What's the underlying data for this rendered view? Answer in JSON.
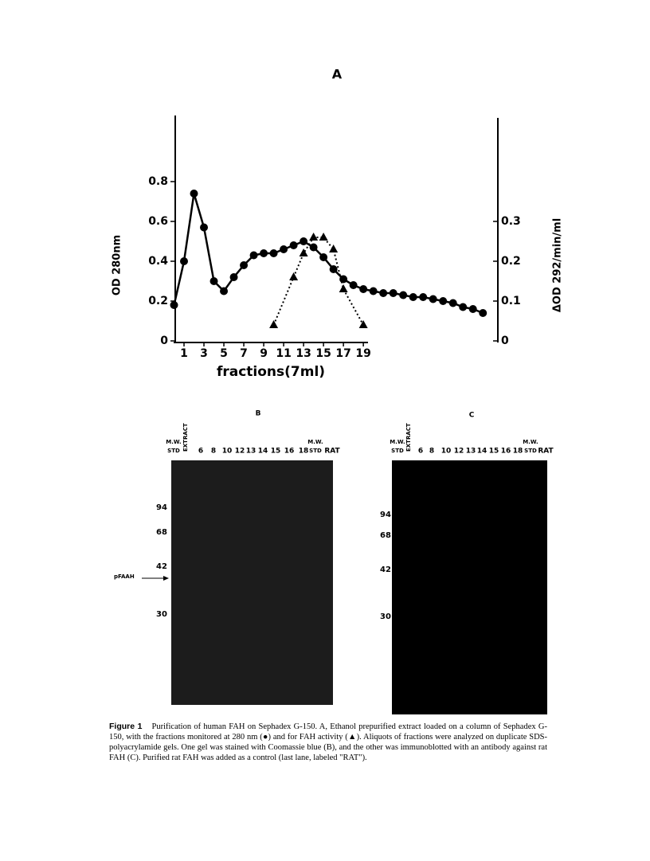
{
  "chart_data": {
    "type": "line",
    "title": "A",
    "xlabel": "fractions(7ml)",
    "ylabel": "OD 280nm",
    "y2label": "ΔOD 292/min/ml",
    "xlim": [
      0,
      32.5
    ],
    "xticks": [
      1,
      3,
      5,
      7,
      9,
      11,
      13,
      15,
      17,
      19
    ],
    "ylim": [
      0,
      1.13
    ],
    "yticks": [
      0,
      0.2,
      0.4,
      0.6,
      0.8
    ],
    "y2lim": [
      0,
      0.565
    ],
    "y2ticks": [
      0,
      0.1,
      0.2,
      0.3
    ],
    "series": [
      {
        "marker": "circle",
        "color": "#000000",
        "axis": "y",
        "x": [
          0,
          1,
          2,
          3,
          4,
          5,
          6,
          7,
          8,
          9,
          10,
          11,
          12,
          13,
          14,
          15,
          16,
          17,
          18,
          19,
          20,
          21,
          22,
          23,
          24,
          25,
          26,
          27,
          28,
          29,
          30,
          31
        ],
        "values": [
          0.18,
          0.4,
          0.74,
          0.57,
          0.3,
          0.25,
          0.32,
          0.38,
          0.43,
          0.44,
          0.44,
          0.46,
          0.48,
          0.5,
          0.47,
          0.42,
          0.36,
          0.31,
          0.28,
          0.26,
          0.25,
          0.24,
          0.24,
          0.23,
          0.22,
          0.22,
          0.21,
          0.2,
          0.19,
          0.17,
          0.16,
          0.14
        ]
      },
      {
        "marker": "triangle",
        "color": "#000000",
        "axis": "y2",
        "dotted": true,
        "x": [
          10,
          12,
          13,
          14,
          15,
          16,
          17,
          19
        ],
        "values": [
          0.04,
          0.16,
          0.22,
          0.26,
          0.26,
          0.23,
          0.13,
          0.04
        ]
      }
    ]
  },
  "gels": [
    {
      "title": "B",
      "shade": "#1c1c1c",
      "lanes": [
        {
          "over": "M.W.",
          "label": "STD"
        },
        {
          "label": "EXTRACT"
        },
        {
          "label": "6"
        },
        {
          "label": "8"
        },
        {
          "label": "10"
        },
        {
          "label": "12"
        },
        {
          "label": "13"
        },
        {
          "label": "14"
        },
        {
          "label": "15"
        },
        {
          "label": "16"
        },
        {
          "label": "18"
        },
        {
          "over": "M.W.",
          "label": "STD"
        },
        {
          "label": "RAT"
        }
      ],
      "markers": [
        94,
        68,
        42,
        30
      ],
      "arrow": "pFAAH"
    },
    {
      "title": "C",
      "shade": "#000000",
      "lanes": [
        {
          "over": "M.W.",
          "label": "STD"
        },
        {
          "label": "EXTRACT"
        },
        {
          "label": "6"
        },
        {
          "label": "8"
        },
        {
          "label": "10"
        },
        {
          "label": "12"
        },
        {
          "label": "13"
        },
        {
          "label": "14"
        },
        {
          "label": "15"
        },
        {
          "label": "16"
        },
        {
          "label": "18"
        },
        {
          "over": "M.W.",
          "label": "STD"
        },
        {
          "label": "RAT"
        }
      ],
      "markers": [
        94,
        68,
        42,
        30
      ]
    }
  ],
  "caption": {
    "label": "Figure 1",
    "text": "Purification of human FAH on Sephadex G-150. A, Ethanol prepurified extract loaded on a column of Sephadex G-150, with the fractions monitored at 280 nm (●) and for FAH activity (▲). Aliquots of fractions were analyzed on duplicate SDS-polyacrylamide gels. One gel was stained with Coomassie blue (B), and the other was immunoblotted with an antibody against rat FAH (C). Purified rat FAH was added as a control (last lane, labeled \"RAT\")."
  }
}
